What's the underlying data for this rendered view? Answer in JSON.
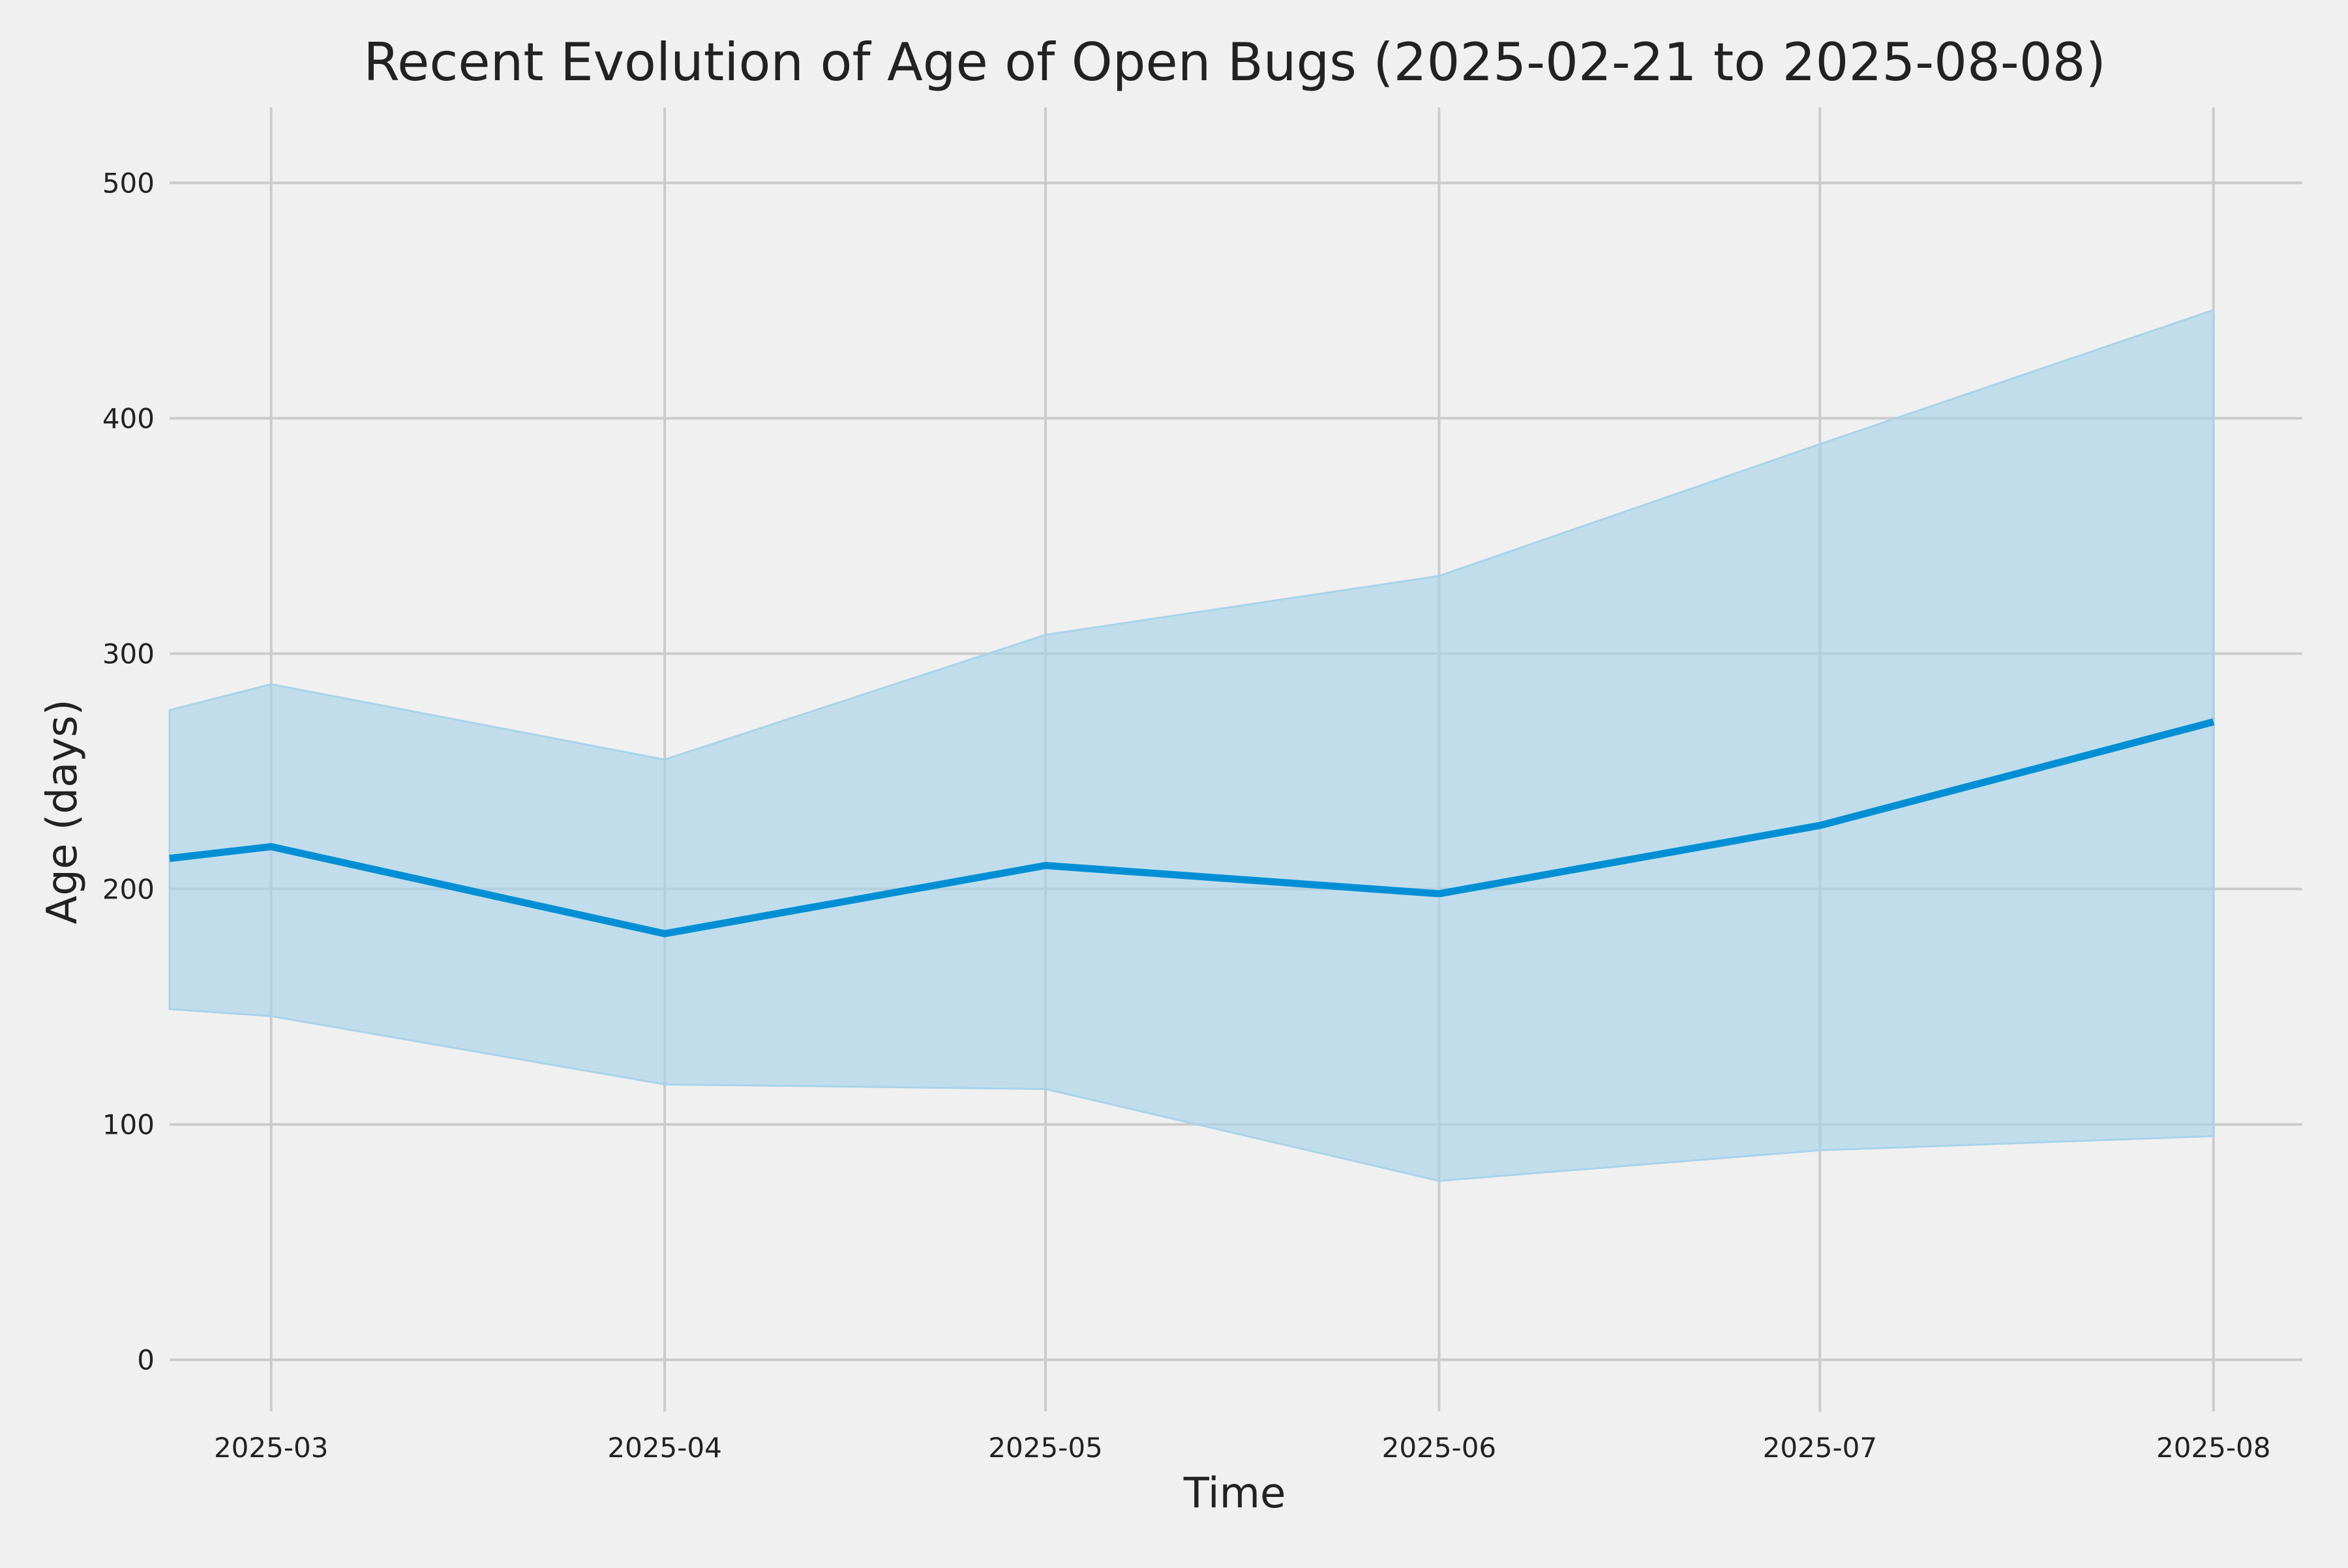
{
  "chart_data": {
    "type": "area",
    "title": "Recent Evolution of Age of Open Bugs (2025-02-21 to 2025-08-08)",
    "xlabel": "Time",
    "ylabel": "Age (days)",
    "x": [
      "2025-02-21",
      "2025-03-01",
      "2025-04-01",
      "2025-05-01",
      "2025-06-01",
      "2025-07-01",
      "2025-08-01"
    ],
    "series": [
      {
        "values": [
          213,
          218,
          181,
          210,
          198,
          227,
          271
        ],
        "lower": [
          149,
          146,
          117,
          115,
          76,
          89,
          95
        ],
        "upper": [
          276,
          287,
          255,
          308,
          333,
          389,
          446
        ]
      }
    ],
    "xticks": [
      "2025-03",
      "2025-04",
      "2025-05",
      "2025-06",
      "2025-07",
      "2025-08"
    ],
    "xtick_dates": [
      "2025-03-01",
      "2025-04-01",
      "2025-05-01",
      "2025-06-01",
      "2025-07-01",
      "2025-08-01"
    ],
    "yticks": [
      0,
      100,
      200,
      300,
      400,
      500
    ],
    "xlim": [
      "2025-02-21",
      "2025-08-08"
    ],
    "ylim": [
      -22,
      532
    ],
    "grid": true,
    "legend": "none",
    "colors": {
      "background": "#f0f0f0",
      "line": "#008fd5",
      "band": "#a8d3ea",
      "grid": "#cbcbcb",
      "text": "#222222"
    }
  }
}
